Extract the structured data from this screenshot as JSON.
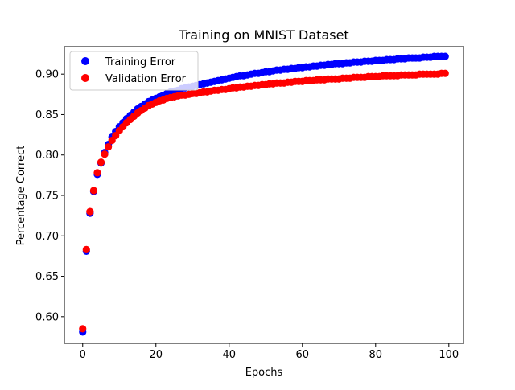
{
  "chart_data": {
    "type": "scatter",
    "title": "Training on MNIST Dataset",
    "xlabel": "Epochs",
    "ylabel": "Percentage Correct",
    "xlim": [
      -5,
      104
    ],
    "ylim": [
      0.567,
      0.934
    ],
    "xticks": [
      0,
      20,
      40,
      60,
      80,
      100
    ],
    "yticks": [
      0.6,
      0.65,
      0.7,
      0.75,
      0.8,
      0.85,
      0.9
    ],
    "ytick_labels": [
      "0.60",
      "0.65",
      "0.70",
      "0.75",
      "0.80",
      "0.85",
      "0.90"
    ],
    "grid": false,
    "legend_position": "top-left",
    "x": [
      0,
      1,
      2,
      3,
      4,
      5,
      6,
      7,
      8,
      9,
      10,
      11,
      12,
      13,
      14,
      15,
      16,
      17,
      18,
      19,
      20,
      21,
      22,
      23,
      24,
      25,
      26,
      27,
      28,
      29,
      30,
      31,
      32,
      33,
      34,
      35,
      36,
      37,
      38,
      39,
      40,
      41,
      42,
      43,
      44,
      45,
      46,
      47,
      48,
      49,
      50,
      51,
      52,
      53,
      54,
      55,
      56,
      57,
      58,
      59,
      60,
      61,
      62,
      63,
      64,
      65,
      66,
      67,
      68,
      69,
      70,
      71,
      72,
      73,
      74,
      75,
      76,
      77,
      78,
      79,
      80,
      81,
      82,
      83,
      84,
      85,
      86,
      87,
      88,
      89,
      90,
      91,
      92,
      93,
      94,
      95,
      96,
      97,
      98,
      99
    ],
    "series": [
      {
        "name": "Training Error",
        "color": "#0000ff",
        "values": [
          0.581,
          0.681,
          0.728,
          0.755,
          0.776,
          0.79,
          0.803,
          0.813,
          0.822,
          0.829,
          0.835,
          0.84,
          0.845,
          0.849,
          0.853,
          0.857,
          0.86,
          0.863,
          0.866,
          0.868,
          0.87,
          0.872,
          0.874,
          0.876,
          0.878,
          0.879,
          0.88,
          0.882,
          0.883,
          0.884,
          0.885,
          0.886,
          0.887,
          0.888,
          0.889,
          0.89,
          0.891,
          0.892,
          0.893,
          0.894,
          0.895,
          0.896,
          0.897,
          0.898,
          0.898,
          0.899,
          0.9,
          0.901,
          0.901,
          0.902,
          0.903,
          0.903,
          0.904,
          0.905,
          0.905,
          0.906,
          0.906,
          0.907,
          0.907,
          0.908,
          0.908,
          0.909,
          0.909,
          0.91,
          0.91,
          0.911,
          0.911,
          0.912,
          0.912,
          0.913,
          0.913,
          0.913,
          0.914,
          0.914,
          0.915,
          0.915,
          0.915,
          0.916,
          0.916,
          0.916,
          0.917,
          0.917,
          0.917,
          0.918,
          0.918,
          0.918,
          0.919,
          0.919,
          0.919,
          0.92,
          0.92,
          0.92,
          0.92,
          0.921,
          0.921,
          0.921,
          0.922,
          0.922,
          0.922,
          0.922
        ]
      },
      {
        "name": "Validation Error",
        "color": "#ff0000",
        "values": [
          0.585,
          0.683,
          0.73,
          0.756,
          0.778,
          0.791,
          0.801,
          0.81,
          0.818,
          0.824,
          0.83,
          0.835,
          0.84,
          0.844,
          0.848,
          0.852,
          0.855,
          0.858,
          0.861,
          0.863,
          0.865,
          0.867,
          0.868,
          0.87,
          0.871,
          0.872,
          0.873,
          0.874,
          0.874,
          0.875,
          0.876,
          0.876,
          0.877,
          0.878,
          0.878,
          0.879,
          0.88,
          0.88,
          0.881,
          0.881,
          0.882,
          0.883,
          0.883,
          0.884,
          0.884,
          0.885,
          0.885,
          0.886,
          0.886,
          0.887,
          0.887,
          0.888,
          0.888,
          0.889,
          0.889,
          0.889,
          0.89,
          0.89,
          0.891,
          0.891,
          0.891,
          0.892,
          0.892,
          0.892,
          0.893,
          0.893,
          0.893,
          0.894,
          0.894,
          0.894,
          0.894,
          0.895,
          0.895,
          0.895,
          0.896,
          0.896,
          0.896,
          0.896,
          0.897,
          0.897,
          0.897,
          0.897,
          0.898,
          0.898,
          0.898,
          0.898,
          0.898,
          0.899,
          0.899,
          0.899,
          0.899,
          0.899,
          0.9,
          0.9,
          0.9,
          0.9,
          0.9,
          0.9,
          0.901,
          0.901
        ]
      }
    ]
  }
}
